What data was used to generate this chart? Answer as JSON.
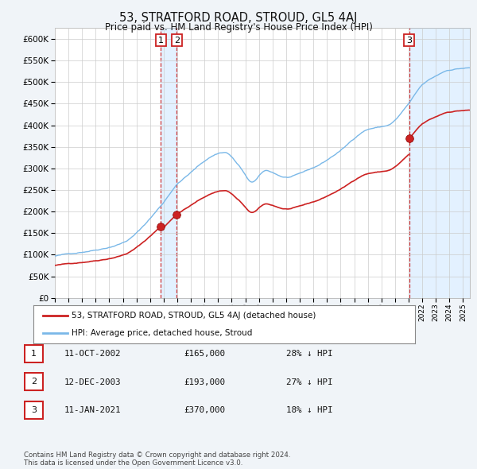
{
  "title": "53, STRATFORD ROAD, STROUD, GL5 4AJ",
  "subtitle": "Price paid vs. HM Land Registry's House Price Index (HPI)",
  "ylim": [
    0,
    625000
  ],
  "yticks": [
    0,
    50000,
    100000,
    150000,
    200000,
    250000,
    300000,
    350000,
    400000,
    450000,
    500000,
    550000,
    600000
  ],
  "ytick_labels": [
    "£0",
    "£50K",
    "£100K",
    "£150K",
    "£200K",
    "£250K",
    "£300K",
    "£350K",
    "£400K",
    "£450K",
    "£500K",
    "£550K",
    "£600K"
  ],
  "hpi_color": "#7ab8e8",
  "price_color": "#cc2222",
  "sale_marker_color": "#cc2222",
  "vline_color": "#cc2222",
  "sale_dates": [
    2002.79,
    2003.96,
    2021.04
  ],
  "sale_prices": [
    165000,
    193000,
    370000
  ],
  "sale_labels": [
    "1",
    "2",
    "3"
  ],
  "shade_color": "#ddeeff",
  "legend_label_price": "53, STRATFORD ROAD, STROUD, GL5 4AJ (detached house)",
  "legend_label_hpi": "HPI: Average price, detached house, Stroud",
  "table_entries": [
    {
      "num": "1",
      "date": "11-OCT-2002",
      "price": "£165,000",
      "hpi": "28% ↓ HPI"
    },
    {
      "num": "2",
      "date": "12-DEC-2003",
      "price": "£193,000",
      "hpi": "27% ↓ HPI"
    },
    {
      "num": "3",
      "date": "11-JAN-2021",
      "price": "£370,000",
      "hpi": "18% ↓ HPI"
    }
  ],
  "footnote": "Contains HM Land Registry data © Crown copyright and database right 2024.\nThis data is licensed under the Open Government Licence v3.0.",
  "bg_color": "#f0f4f8",
  "plot_bg_color": "#ffffff",
  "grid_color": "#cccccc",
  "xlim_start": 1995.0,
  "xlim_end": 2025.5
}
